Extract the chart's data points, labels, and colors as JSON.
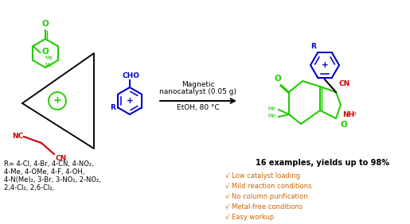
{
  "bg_color": "#ffffff",
  "green": "#22cc00",
  "blue": "#0000cc",
  "red": "#cc0000",
  "orange": "#cc6600",
  "black": "#000000",
  "r_groups_line1": "R= 4-Cl, 4-Br, 4-CN, 4-NO₂,",
  "r_groups_line2": "4-Me, 4-OMe, 4-F, 4-OH,",
  "r_groups_line3": "4-N(Me)₂, 3-Br, 3-NO₂, 2-NO₂,",
  "r_groups_line4": "2,4-Cl₂, 2,6-Cl₂,",
  "bullet1": "√ Low catalyst loading",
  "bullet2": "√ Mild reaction conditions",
  "bullet3": "√ No column purification",
  "bullet4": "√ Metal-free conditions",
  "bullet5": "√ Easy workup",
  "yield_text": "16 examples, yields up to 98%",
  "arrow_text1": "Magnetic",
  "arrow_text2": "nanocatalyst (0.05 g)",
  "arrow_text3": "EtOH, 80 °C"
}
